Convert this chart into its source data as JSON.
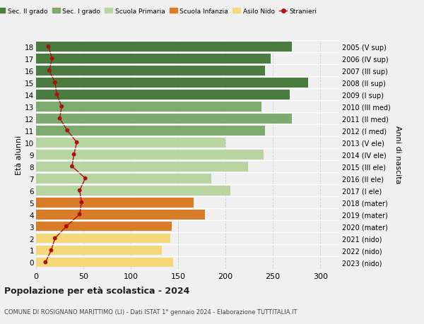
{
  "ages": [
    18,
    17,
    16,
    15,
    14,
    13,
    12,
    11,
    10,
    9,
    8,
    7,
    6,
    5,
    4,
    3,
    2,
    1,
    0
  ],
  "right_labels": [
    "2005 (V sup)",
    "2006 (IV sup)",
    "2007 (III sup)",
    "2008 (II sup)",
    "2009 (I sup)",
    "2010 (III med)",
    "2011 (II med)",
    "2012 (I med)",
    "2013 (V ele)",
    "2014 (IV ele)",
    "2015 (III ele)",
    "2016 (II ele)",
    "2017 (I ele)",
    "2018 (mater)",
    "2019 (mater)",
    "2020 (mater)",
    "2021 (nido)",
    "2022 (nido)",
    "2023 (nido)"
  ],
  "bar_values": [
    270,
    248,
    242,
    287,
    268,
    238,
    270,
    242,
    200,
    240,
    224,
    185,
    205,
    166,
    178,
    143,
    142,
    133,
    145
  ],
  "stranieri_values": [
    13,
    17,
    14,
    20,
    22,
    27,
    25,
    33,
    43,
    40,
    38,
    52,
    46,
    48,
    46,
    32,
    20,
    16,
    10
  ],
  "bar_colors": [
    "#4a7c3f",
    "#4a7c3f",
    "#4a7c3f",
    "#4a7c3f",
    "#4a7c3f",
    "#7daa6e",
    "#7daa6e",
    "#7daa6e",
    "#b8d4a0",
    "#b8d4a0",
    "#b8d4a0",
    "#b8d4a0",
    "#b8d4a0",
    "#d97c2a",
    "#d97c2a",
    "#d97c2a",
    "#f5d87a",
    "#f5d87a",
    "#f5d87a"
  ],
  "legend_labels": [
    "Sec. II grado",
    "Sec. I grado",
    "Scuola Primaria",
    "Scuola Infanzia",
    "Asilo Nido",
    "Stranieri"
  ],
  "legend_colors": [
    "#4a7c3f",
    "#7daa6e",
    "#b8d4a0",
    "#d97c2a",
    "#f5d87a",
    "#cc2222"
  ],
  "ylabel_left": "Età alunni",
  "ylabel_right": "Anni di nascita",
  "xlim": [
    0,
    320
  ],
  "xticks": [
    0,
    50,
    100,
    150,
    200,
    250,
    300
  ],
  "title": "Popolazione per età scolastica - 2024",
  "subtitle": "COMUNE DI ROSIGNANO MARITTIMO (LI) - Dati ISTAT 1° gennaio 2024 - Elaborazione TUTTITALIA.IT",
  "bg_color": "#f0f0f0",
  "bar_height": 0.82,
  "stranieri_line_color": "#aa1111",
  "stranieri_marker_color": "#aa1111"
}
